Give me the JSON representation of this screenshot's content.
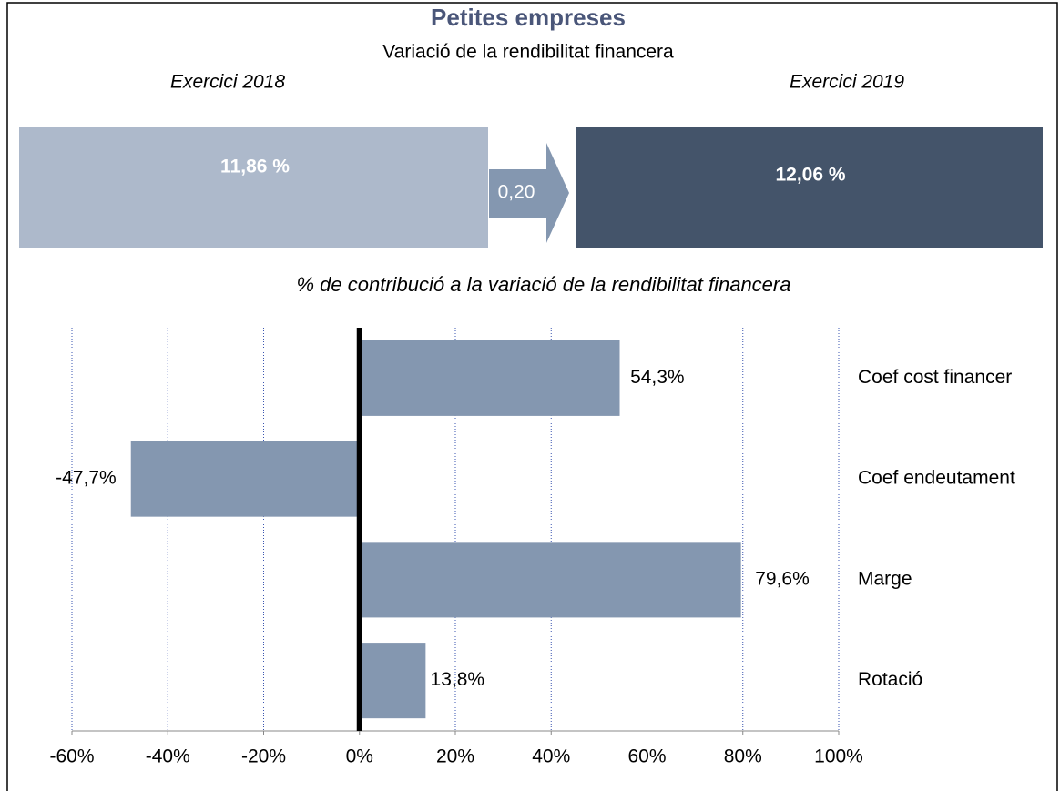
{
  "header": {
    "title": "Petites empreses",
    "subtitle": "Variació de la rendibilitat financera",
    "from": {
      "label": "Exercici 2018",
      "value": 11.86,
      "value_label": "11,86 %"
    },
    "change": {
      "value": 0.2,
      "value_label": "0,20"
    },
    "to": {
      "label": "Exercici 2019",
      "value": 12.06,
      "value_label": "12,06 %"
    }
  },
  "chart_data": {
    "type": "hbar",
    "title": "% de contribució a la variació de la rendibilitat financera",
    "categories": [
      "Coef cost financer",
      "Coef endeutament",
      "Marge",
      "Rotació"
    ],
    "values": [
      54.3,
      -47.7,
      79.6,
      13.8
    ],
    "value_labels": [
      "54,3%",
      "-47,7%",
      "79,6%",
      "13,8%"
    ],
    "color": "#8497b0",
    "xlim": [
      -60,
      100
    ],
    "xticks": [
      {
        "value": -60,
        "label": "-60%"
      },
      {
        "value": -40,
        "label": "-40%"
      },
      {
        "value": -20,
        "label": "-20%"
      },
      {
        "value": 0,
        "label": "0%"
      },
      {
        "value": 20,
        "label": "20%"
      },
      {
        "value": 40,
        "label": "40%"
      },
      {
        "value": 60,
        "label": "60%"
      },
      {
        "value": 80,
        "label": "80%"
      },
      {
        "value": 100,
        "label": "100%"
      }
    ],
    "grid": true
  }
}
